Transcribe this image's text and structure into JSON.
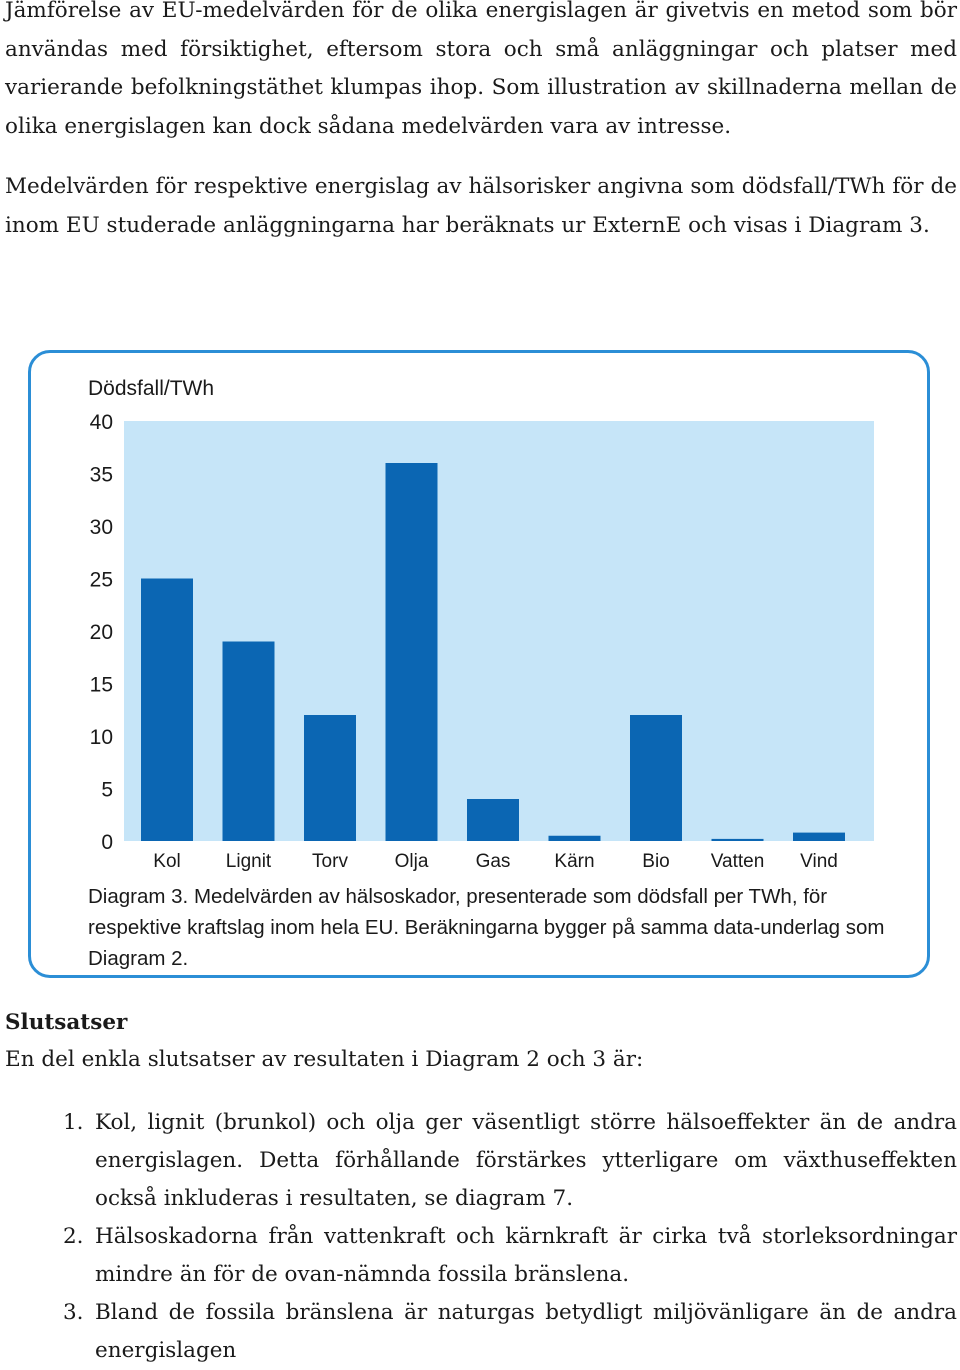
{
  "paragraphs": [
    "Jämförelse av EU-medelvärden för de olika energislagen är givetvis en metod som bör användas med försiktighet, eftersom stora och små anläggningar och platser med varierande befolkningstäthet klumpas ihop. Som illustration av skillnaderna mellan de olika energislagen kan dock sådana medelvärden vara av intresse.",
    "Medelvärden för respektive energislag av hälsorisker angivna som dödsfall/TWh för de inom EU studerade anläggningarna har beräknats ur ExternE och visas i Diagram 3."
  ],
  "figure": {
    "caption": "Diagram 3. Medelvärden av hälsoskador, presenterade som dödsfall per TWh, för respektive kraftslag inom hela EU. Beräkningarna bygger på samma data-underlag som Diagram 2."
  },
  "chart_data": {
    "type": "bar",
    "ylabel": "Dödsfall/TWh",
    "categories": [
      "Kol",
      "Lignit",
      "Torv",
      "Olja",
      "Gas",
      "Kärn",
      "Bio",
      "Vatten",
      "Vind"
    ],
    "values": [
      25,
      19,
      12,
      36,
      4,
      0.5,
      12,
      0.2,
      0.8
    ],
    "ylim": [
      0,
      40
    ],
    "yticks": [
      "0",
      "5",
      "10",
      "15",
      "20",
      "25",
      "30",
      "35",
      "40"
    ],
    "grid": false,
    "colors": {
      "bar": "#0b66b3",
      "plot_background": "#c6e5f8",
      "frame": "#2b8ed6"
    }
  },
  "conclusions": {
    "heading": "Slutsatser",
    "intro": "En del enkla slutsatser av resultaten i Diagram 2 och 3 är:",
    "items": [
      {
        "num": "1.",
        "text": "Kol, lignit (brunkol) och olja ger väsentligt större hälsoeffekter än de andra energislagen. Detta förhållande förstärkes ytterligare om växthuseffekten också inkluderas i resultaten, se diagram 7."
      },
      {
        "num": "2.",
        "text": "Hälsoskadorna från vattenkraft och kärnkraft är cirka två storleksordningar mindre än för de ovan-nämnda fossila bränslena."
      },
      {
        "num": "3.",
        "text": "Bland de fossila bränslena är naturgas betydligt miljövänligare än de andra energislagen"
      }
    ]
  }
}
